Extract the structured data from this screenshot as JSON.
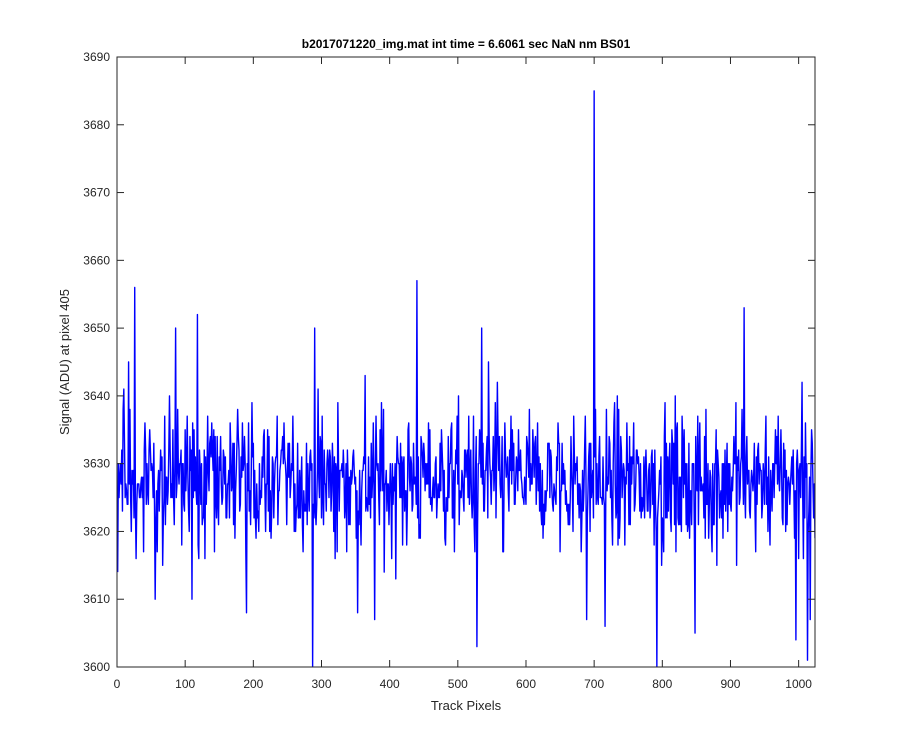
{
  "chart_data": {
    "type": "line",
    "title": "b2017071220_img.mat int time = 6.6061 sec  NaN nm BS01",
    "xlabel": "Track Pixels",
    "ylabel": "Signal (ADU) at pixel 405",
    "xlim": [
      0,
      1024
    ],
    "ylim": [
      3600,
      3690
    ],
    "x_ticks": [
      0,
      100,
      200,
      300,
      400,
      500,
      600,
      700,
      800,
      900,
      1000
    ],
    "y_ticks": [
      3600,
      3610,
      3620,
      3630,
      3640,
      3650,
      3660,
      3670,
      3680,
      3690
    ],
    "grid": false,
    "legend": "none",
    "series": [
      {
        "color": "#0000ff",
        "x_start": 1,
        "x_step": 1,
        "sample_count": 1024,
        "baseline": 3627.5,
        "noise_std": 7,
        "notable_points": [
          {
            "x": 1,
            "y": 3614
          },
          {
            "x": 10,
            "y": 3641
          },
          {
            "x": 17,
            "y": 3645
          },
          {
            "x": 26,
            "y": 3656
          },
          {
            "x": 28,
            "y": 3616
          },
          {
            "x": 86,
            "y": 3650
          },
          {
            "x": 110,
            "y": 3610
          },
          {
            "x": 118,
            "y": 3652
          },
          {
            "x": 190,
            "y": 3608
          },
          {
            "x": 287,
            "y": 3600
          },
          {
            "x": 290,
            "y": 3650
          },
          {
            "x": 353,
            "y": 3608
          },
          {
            "x": 378,
            "y": 3607
          },
          {
            "x": 440,
            "y": 3657
          },
          {
            "x": 528,
            "y": 3603
          },
          {
            "x": 535,
            "y": 3650
          },
          {
            "x": 545,
            "y": 3645
          },
          {
            "x": 689,
            "y": 3607
          },
          {
            "x": 700,
            "y": 3685
          },
          {
            "x": 716,
            "y": 3606
          },
          {
            "x": 792,
            "y": 3600
          },
          {
            "x": 848,
            "y": 3605
          },
          {
            "x": 920,
            "y": 3653
          },
          {
            "x": 996,
            "y": 3604
          },
          {
            "x": 1005,
            "y": 3642
          },
          {
            "x": 1013,
            "y": 3601
          },
          {
            "x": 1017,
            "y": 3607
          }
        ]
      }
    ]
  }
}
